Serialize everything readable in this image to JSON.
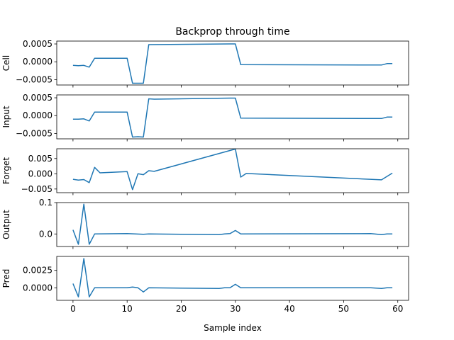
{
  "chart_data": {
    "type": "line",
    "title": "Backprop through time",
    "xlabel": "Sample index",
    "xlim": [
      -3,
      62
    ],
    "xticks": [
      0,
      10,
      20,
      30,
      40,
      50,
      60
    ],
    "grid": false,
    "legend": "none",
    "line_color": "#1f77b4",
    "panels": [
      {
        "name": "cell",
        "ylabel": "Cell",
        "ylim": [
          -0.00065,
          0.00058
        ],
        "yticks": [
          -0.0005,
          0.0,
          0.0005
        ],
        "ytick_labels": [
          "−0.0005",
          "0.0000",
          "0.0005"
        ],
        "points": [
          [
            0,
            -0.0001
          ],
          [
            1,
            -0.00011
          ],
          [
            2,
            -0.0001
          ],
          [
            3,
            -0.00015
          ],
          [
            4,
            0.0001
          ],
          [
            10,
            0.0001
          ],
          [
            11,
            -0.0006
          ],
          [
            13,
            -0.0006
          ],
          [
            14,
            0.00048
          ],
          [
            29,
            0.0005
          ],
          [
            30,
            0.0005
          ],
          [
            31,
            -8e-05
          ],
          [
            57,
            -9e-05
          ],
          [
            58,
            -5e-05
          ],
          [
            59,
            -5e-05
          ]
        ]
      },
      {
        "name": "input",
        "ylabel": "Input",
        "ylim": [
          -0.00065,
          0.00058
        ],
        "yticks": [
          -0.0005,
          0.0,
          0.0005
        ],
        "ytick_labels": [
          "−0.0005",
          "0.0000",
          "0.0005"
        ],
        "points": [
          [
            0,
            -0.0001
          ],
          [
            1,
            -0.0001
          ],
          [
            2,
            -9e-05
          ],
          [
            3,
            -0.00015
          ],
          [
            4,
            0.0001
          ],
          [
            10,
            0.0001
          ],
          [
            11,
            -0.0006
          ],
          [
            12,
            -0.00059
          ],
          [
            13,
            -0.0006
          ],
          [
            14,
            0.00047
          ],
          [
            15,
            0.00046
          ],
          [
            29,
            0.00049
          ],
          [
            30,
            0.00049
          ],
          [
            31,
            -7e-05
          ],
          [
            57,
            -8e-05
          ],
          [
            58,
            -4e-05
          ],
          [
            59,
            -4e-05
          ]
        ]
      },
      {
        "name": "forget",
        "ylabel": "Forget",
        "ylim": [
          -0.0062,
          0.0082
        ],
        "yticks": [
          -0.005,
          0.0,
          0.005
        ],
        "ytick_labels": [
          "−0.005",
          "0.000",
          "0.005"
        ],
        "points": [
          [
            0,
            -0.0018
          ],
          [
            1,
            -0.0021
          ],
          [
            2,
            -0.0019
          ],
          [
            3,
            -0.0029
          ],
          [
            4,
            0.0021
          ],
          [
            5,
            0.0003
          ],
          [
            10,
            0.0007
          ],
          [
            11,
            -0.0052
          ],
          [
            12,
            0.0
          ],
          [
            13,
            -0.0003
          ],
          [
            14,
            0.001
          ],
          [
            15,
            0.0008
          ],
          [
            30,
            0.0081
          ],
          [
            31,
            -0.0011
          ],
          [
            32,
            0.0001
          ],
          [
            57,
            -0.002
          ],
          [
            59,
            0.0002
          ]
        ]
      },
      {
        "name": "output",
        "ylabel": "Output",
        "ylim": [
          -0.04,
          0.1
        ],
        "yticks": [
          0.0,
          0.1
        ],
        "ytick_labels": [
          "0.0",
          "0.1"
        ],
        "points": [
          [
            0,
            0.013
          ],
          [
            1,
            -0.033
          ],
          [
            2,
            0.095
          ],
          [
            3,
            -0.033
          ],
          [
            4,
            0.0
          ],
          [
            10,
            0.001
          ],
          [
            13,
            -0.001
          ],
          [
            14,
            0.0
          ],
          [
            27,
            -0.002
          ],
          [
            28,
            0.0
          ],
          [
            29,
            0.001
          ],
          [
            30,
            0.011
          ],
          [
            31,
            0.0
          ],
          [
            55,
            0.001
          ],
          [
            57,
            -0.002
          ],
          [
            58,
            0.0
          ],
          [
            59,
            0.0
          ]
        ]
      },
      {
        "name": "pred",
        "ylabel": "Pred",
        "ylim": [
          -0.0018,
          0.0045
        ],
        "yticks": [
          0.0,
          0.0025
        ],
        "ytick_labels": [
          "0.0000",
          "0.0025"
        ],
        "points": [
          [
            0,
            0.0006
          ],
          [
            1,
            -0.0013
          ],
          [
            2,
            0.0042
          ],
          [
            3,
            -0.0013
          ],
          [
            4,
            0.0
          ],
          [
            10,
            0.0
          ],
          [
            11,
            0.0001
          ],
          [
            12,
            0.0
          ],
          [
            13,
            -0.0006
          ],
          [
            14,
            0.0
          ],
          [
            27,
            -0.0001
          ],
          [
            28,
            0.0
          ],
          [
            29,
            0.0
          ],
          [
            30,
            0.0005
          ],
          [
            31,
            0.0
          ],
          [
            55,
            0.0
          ],
          [
            57,
            -0.0001
          ],
          [
            58,
            0.0
          ],
          [
            59,
            0.0
          ]
        ]
      }
    ]
  }
}
